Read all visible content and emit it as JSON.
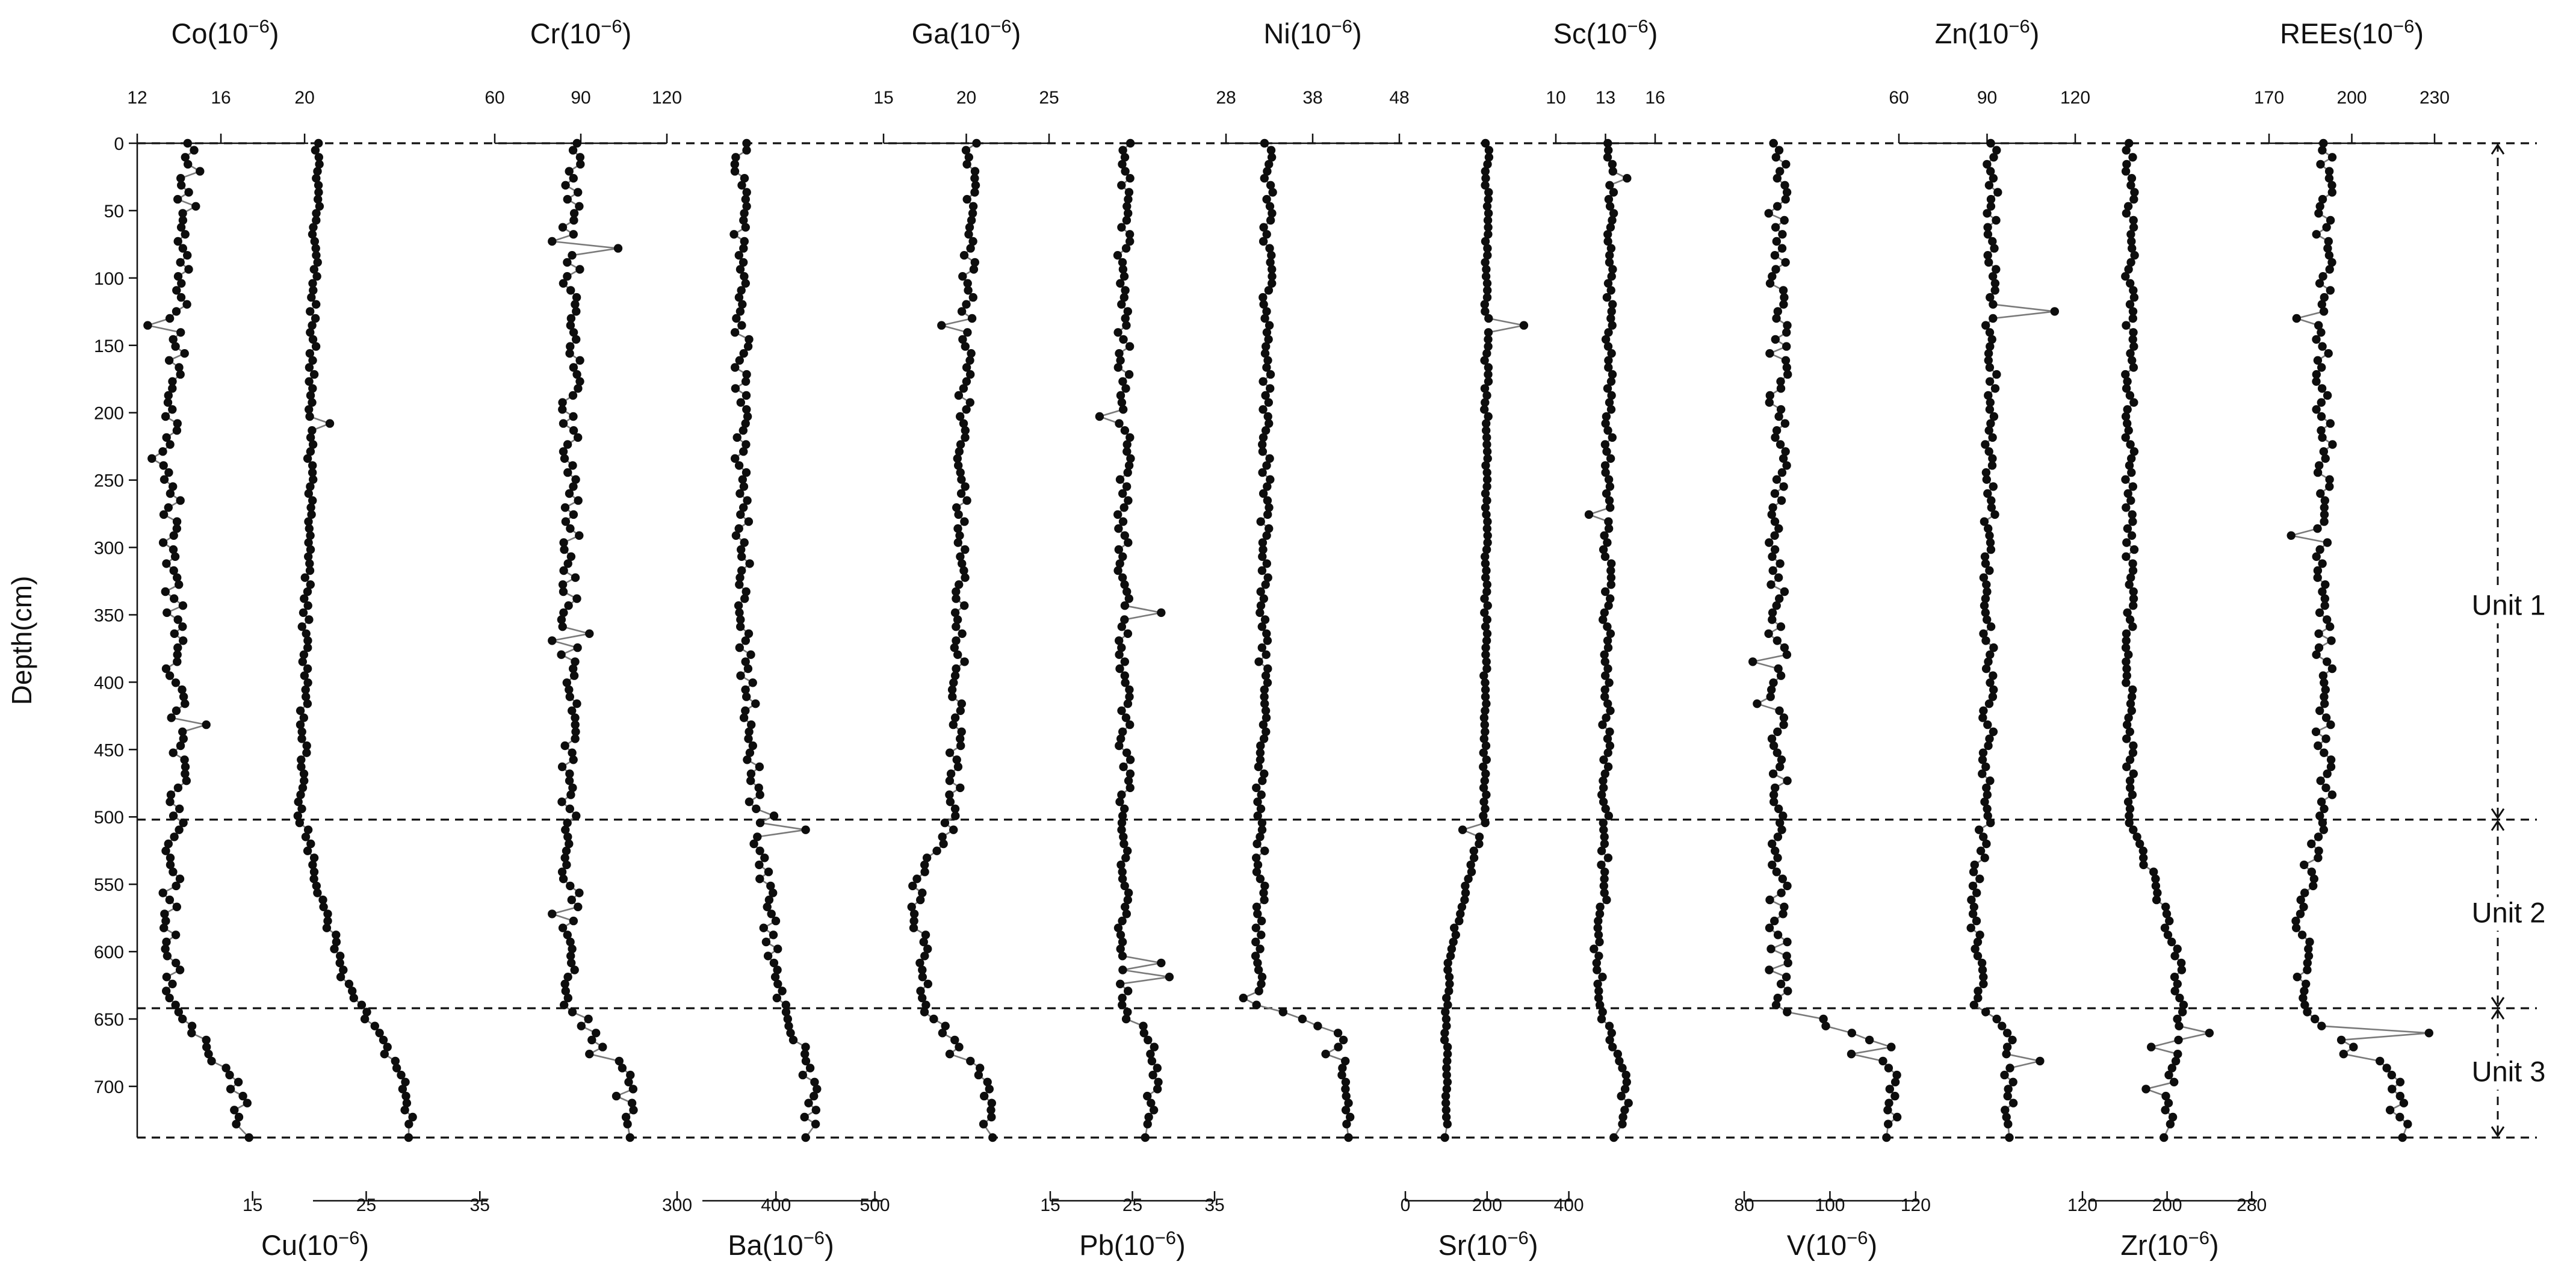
{
  "chart_data": {
    "type": "line",
    "y_axis": {
      "label": "Depth(cm)",
      "range": [
        0,
        738
      ],
      "ticks": [
        0,
        50,
        100,
        150,
        200,
        250,
        300,
        350,
        400,
        450,
        500,
        550,
        600,
        650,
        700
      ]
    },
    "units": [
      {
        "label": "Unit 1",
        "top": 0,
        "bottom": 502
      },
      {
        "label": "Unit 2",
        "top": 502,
        "bottom": 642
      },
      {
        "label": "Unit 3",
        "top": 642,
        "bottom": 738
      }
    ],
    "boundaries": [
      0,
      502,
      642,
      738
    ],
    "marker": "filled-circle",
    "line_color": "#7a7a7a",
    "series": [
      {
        "name": "Co(10⁻⁶)",
        "axis_position": "top",
        "ticks": [
          12,
          16,
          20
        ],
        "xlim": [
          12,
          20.4
        ],
        "profile": [
          [
            0,
            14.3
          ],
          [
            250,
            13.6
          ],
          [
            500,
            14.0
          ],
          [
            550,
            13.6
          ],
          [
            640,
            13.8
          ],
          [
            700,
            16.8
          ],
          [
            738,
            17.2
          ]
        ],
        "noise": 0.45,
        "spikes": [
          [
            20,
            15.0
          ],
          [
            45,
            14.8
          ],
          [
            133,
            12.5
          ],
          [
            232,
            12.7
          ],
          [
            430,
            15.3
          ],
          [
            465,
            14.3
          ]
        ]
      },
      {
        "name": "Cu(10⁻⁶)",
        "axis_position": "bottom",
        "ticks": [
          15,
          25,
          35
        ],
        "xlim": [
          4,
          37
        ],
        "profile": [
          [
            0,
            20.7
          ],
          [
            500,
            19.3
          ],
          [
            620,
            23.0
          ],
          [
            640,
            24.5
          ],
          [
            700,
            28.5
          ],
          [
            738,
            29.0
          ]
        ],
        "noise": 0.35,
        "spikes": [
          [
            0,
            20.8
          ],
          [
            207,
            21.8
          ],
          [
            642,
            24.6
          ]
        ]
      },
      {
        "name": "Cr(10⁻⁶)",
        "axis_position": "top",
        "ticks": [
          60,
          90,
          120
        ],
        "xlim": [
          60,
          120
        ],
        "profile": [
          [
            0,
            87
          ],
          [
            500,
            86
          ],
          [
            640,
            87
          ],
          [
            690,
            105
          ],
          [
            738,
            106
          ]
        ],
        "noise": 3.2,
        "spikes": [
          [
            78,
            103
          ],
          [
            72,
            80
          ],
          [
            365,
            93
          ],
          [
            370,
            80
          ],
          [
            570,
            80
          ],
          [
            675,
            93
          ]
        ]
      },
      {
        "name": "Ba(10⁻⁶)",
        "axis_position": "bottom",
        "ticks": [
          300,
          400,
          500
        ],
        "xlim": [
          300,
          510
        ],
        "profile": [
          [
            0,
            365
          ],
          [
            300,
            365
          ],
          [
            500,
            380
          ],
          [
            640,
            405
          ],
          [
            690,
            435
          ],
          [
            738,
            435
          ]
        ],
        "noise": 8,
        "spikes": [
          [
            508,
            430
          ],
          [
            500,
            398
          ]
        ]
      },
      {
        "name": "Ga(10⁻⁶)",
        "axis_position": "top",
        "ticks": [
          15,
          20,
          25
        ],
        "xlim": [
          15,
          25
        ],
        "profile": [
          [
            0,
            20.3
          ],
          [
            500,
            19.3
          ],
          [
            550,
            17.0
          ],
          [
            640,
            17.5
          ],
          [
            690,
            21.0
          ],
          [
            738,
            21.5
          ]
        ],
        "noise": 0.4,
        "spikes": [
          [
            675,
            19.0
          ],
          [
            133,
            18.5
          ]
        ]
      },
      {
        "name": "Pb(10⁻⁶)",
        "axis_position": "bottom",
        "ticks": [
          15,
          25,
          35
        ],
        "xlim": [
          15,
          35
        ],
        "profile": [
          [
            0,
            24
          ],
          [
            250,
            24
          ],
          [
            500,
            24
          ],
          [
            640,
            24
          ],
          [
            680,
            28
          ],
          [
            738,
            27
          ]
        ],
        "noise": 0.8,
        "spikes": [
          [
            350,
            28.5
          ],
          [
            205,
            21
          ],
          [
            620,
            29.5
          ],
          [
            608,
            28.5
          ]
        ]
      },
      {
        "name": "Ni(10⁻⁶)",
        "axis_position": "top",
        "ticks": [
          28,
          38,
          48
        ],
        "xlim": [
          28,
          48
        ],
        "profile": [
          [
            0,
            33
          ],
          [
            500,
            32
          ],
          [
            640,
            32
          ],
          [
            660,
            41
          ],
          [
            738,
            42
          ]
        ],
        "noise": 0.6,
        "spikes": [
          [
            635,
            30
          ],
          [
            675,
            39.5
          ]
        ]
      },
      {
        "name": "Sr(10⁻⁶)",
        "axis_position": "bottom",
        "ticks": [
          0,
          200,
          400
        ],
        "xlim": [
          0,
          405
        ],
        "profile": [
          [
            0,
            200
          ],
          [
            500,
            195
          ],
          [
            550,
            150
          ],
          [
            600,
            110
          ],
          [
            640,
            100
          ],
          [
            738,
            100
          ]
        ],
        "noise": 5,
        "spikes": [
          [
            135,
            290
          ],
          [
            508,
            270
          ],
          [
            512,
            140
          ]
        ]
      },
      {
        "name": "Sc(10⁻⁶)",
        "axis_position": "top",
        "ticks": [
          10,
          13,
          16
        ],
        "xlim": [
          10,
          16
        ],
        "profile": [
          [
            0,
            13.3
          ],
          [
            500,
            13.0
          ],
          [
            640,
            12.6
          ],
          [
            690,
            14.1
          ],
          [
            738,
            14.3
          ]
        ],
        "noise": 0.25,
        "spikes": [
          [
            28,
            14.3
          ],
          [
            600,
            12.3
          ],
          [
            273,
            12.0
          ],
          [
            735,
            13.5
          ]
        ]
      },
      {
        "name": "V(10⁻⁶)",
        "axis_position": "bottom",
        "ticks": [
          80,
          100,
          120
        ],
        "xlim": [
          80,
          121
        ],
        "profile": [
          [
            0,
            88
          ],
          [
            500,
            88
          ],
          [
            640,
            88
          ],
          [
            670,
            113
          ],
          [
            738,
            115
          ]
        ],
        "noise": 2.3,
        "spikes": [
          [
            385,
            82
          ],
          [
            675,
            105
          ],
          [
            415,
            83
          ]
        ]
      },
      {
        "name": "Zn(10⁻⁶)",
        "axis_position": "top",
        "ticks": [
          60,
          90,
          120
        ],
        "xlim": [
          60,
          120
        ],
        "profile": [
          [
            0,
            92
          ],
          [
            500,
            90
          ],
          [
            550,
            86
          ],
          [
            640,
            87
          ],
          [
            660,
            98
          ],
          [
            738,
            97
          ]
        ],
        "noise": 2.0,
        "spikes": [
          [
            125,
            113
          ],
          [
            130,
            92
          ],
          [
            682,
            108
          ]
        ]
      },
      {
        "name": "Zr(10⁻⁶)",
        "axis_position": "bottom",
        "ticks": [
          120,
          200,
          280
        ],
        "xlim": [
          120,
          285
        ],
        "profile": [
          [
            0,
            165
          ],
          [
            500,
            165
          ],
          [
            600,
            210
          ],
          [
            640,
            212
          ],
          [
            680,
            205
          ],
          [
            738,
            200
          ]
        ],
        "noise": 4.5,
        "spikes": [
          [
            660,
            240
          ],
          [
            670,
            185
          ],
          [
            700,
            180
          ]
        ]
      },
      {
        "name": "REEs(10⁻⁶)",
        "axis_position": "top",
        "ticks": [
          170,
          200,
          230
        ],
        "xlim": [
          170,
          230
        ],
        "profile": [
          [
            0,
            190
          ],
          [
            500,
            190
          ],
          [
            550,
            183
          ],
          [
            640,
            182
          ],
          [
            690,
            215
          ],
          [
            738,
            218
          ]
        ],
        "noise": 3.0,
        "spikes": [
          [
            130,
            180
          ],
          [
            290,
            178
          ],
          [
            675,
            197
          ],
          [
            660,
            228
          ]
        ]
      }
    ]
  }
}
